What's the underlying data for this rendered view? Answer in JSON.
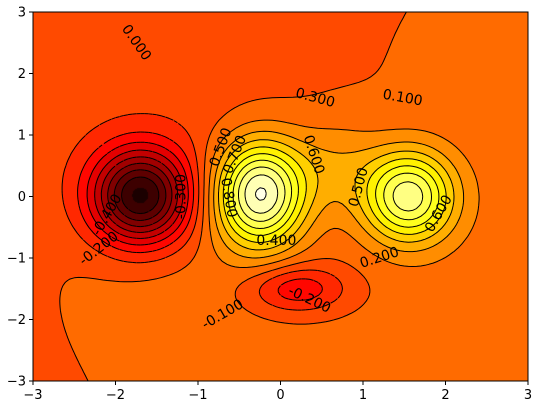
{
  "chart_data": {
    "type": "filled-contour",
    "title": "",
    "xlabel": "",
    "ylabel": "",
    "xlim": [
      -3,
      3
    ],
    "ylim": [
      -3,
      3
    ],
    "grid": false,
    "colormap": "hot",
    "colors": {
      "lowest": "#7a0000",
      "background": "#ff0500",
      "highest": "#ffffe0",
      "line": "#000000"
    },
    "x_ticks": [
      -3,
      -2,
      -1,
      0,
      1,
      2,
      3
    ],
    "y_ticks": [
      -3,
      -2,
      -1,
      0,
      1,
      2,
      3
    ],
    "x_tick_labels": [
      "−3",
      "−2",
      "−1",
      "0",
      "1",
      "2",
      "3"
    ],
    "y_tick_labels": [
      "−3",
      "−2",
      "−1",
      "0",
      "1",
      "2",
      "3"
    ],
    "negative_contours_dashed": true,
    "features": [
      {
        "kind": "minimum",
        "x": -1.7,
        "y": 0.0,
        "value": -0.9
      },
      {
        "kind": "minimum",
        "x": 0.2,
        "y": -1.5,
        "value": -0.3
      },
      {
        "kind": "maximum",
        "x": -0.25,
        "y": 0.05,
        "value": 0.95
      },
      {
        "kind": "maximum",
        "x": 1.55,
        "y": 0.0,
        "value": 0.75
      }
    ],
    "contour_labels": [
      {
        "text": "0.000",
        "x": -1.75,
        "y": 2.5,
        "angle": 55
      },
      {
        "text": "0.300",
        "x": 0.42,
        "y": 1.6,
        "angle": 15
      },
      {
        "text": "0.100",
        "x": 1.48,
        "y": 1.6,
        "angle": 10
      },
      {
        "text": "0.500",
        "x": -0.72,
        "y": 0.8,
        "angle": -70
      },
      {
        "text": "0.700",
        "x": -0.55,
        "y": 0.68,
        "angle": -68
      },
      {
        "text": "0.600",
        "x": 0.4,
        "y": 0.68,
        "angle": 72
      },
      {
        "text": "0.800",
        "x": -0.63,
        "y": -0.02,
        "angle": 80
      },
      {
        "text": "0.500",
        "x": 0.95,
        "y": 0.15,
        "angle": -75
      },
      {
        "text": "0.400",
        "x": -0.05,
        "y": -0.72,
        "angle": 0
      },
      {
        "text": "0.600",
        "x": 1.92,
        "y": -0.28,
        "angle": -60
      },
      {
        "text": "0.200",
        "x": 1.2,
        "y": -1.0,
        "angle": -18
      },
      {
        "text": "-0.300",
        "x": -1.2,
        "y": 0.0,
        "angle": -90
      },
      {
        "text": "-0.400",
        "x": -2.1,
        "y": -0.3,
        "angle": -60
      },
      {
        "text": "-0.200",
        "x": -2.2,
        "y": -0.85,
        "angle": -38
      },
      {
        "text": "-0.100",
        "x": -0.7,
        "y": -1.92,
        "angle": -30
      },
      {
        "text": "-0.200",
        "x": 0.35,
        "y": -1.68,
        "angle": 25
      }
    ]
  }
}
